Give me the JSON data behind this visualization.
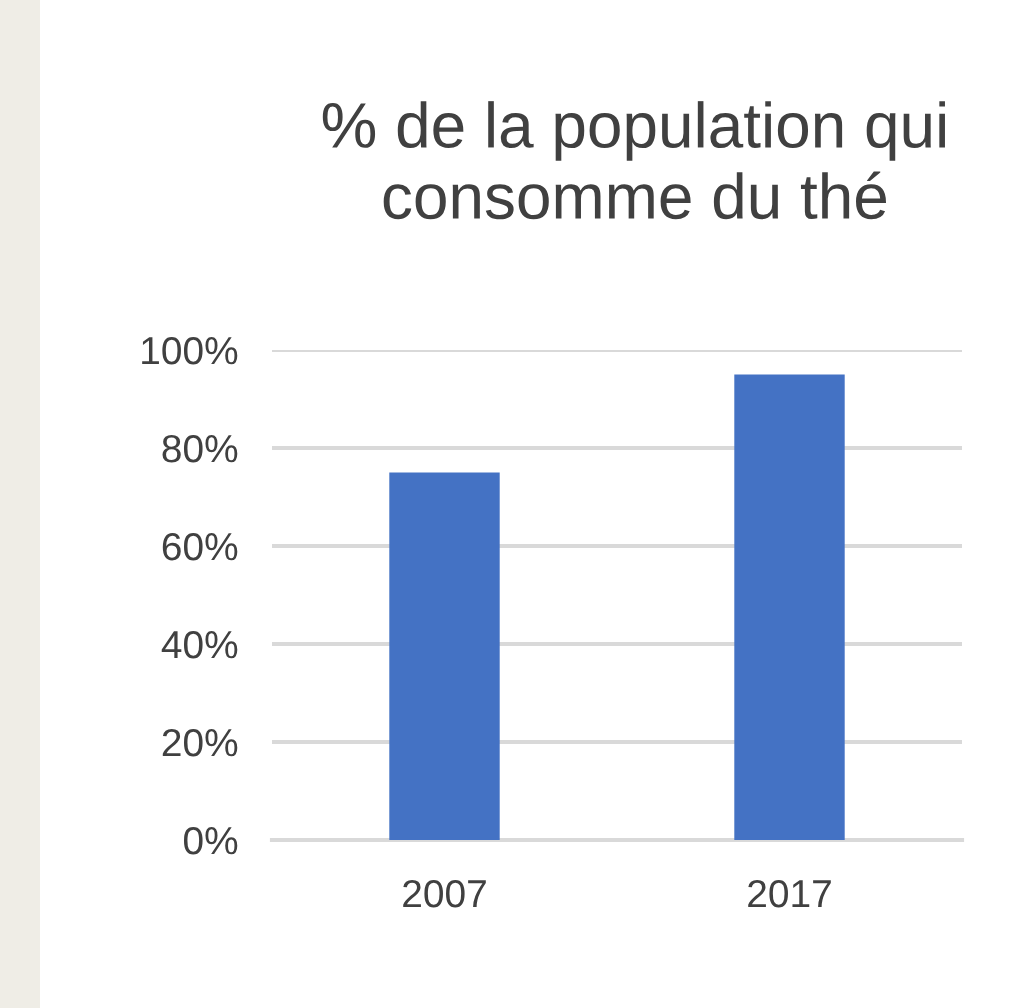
{
  "chart_data": {
    "type": "bar",
    "title": "% de la population qui\nconsomme du thé",
    "categories": [
      "2007",
      "2017"
    ],
    "values": [
      75,
      95
    ],
    "color": "#4472c4",
    "ylim": [
      0,
      100
    ],
    "yticks": [
      {
        "value": 0,
        "label": "0%"
      },
      {
        "value": 20,
        "label": "20%"
      },
      {
        "value": 40,
        "label": "40%"
      },
      {
        "value": 60,
        "label": "60%"
      },
      {
        "value": 80,
        "label": "80%"
      },
      {
        "value": 100,
        "label": "100%"
      }
    ],
    "grid": "y"
  }
}
